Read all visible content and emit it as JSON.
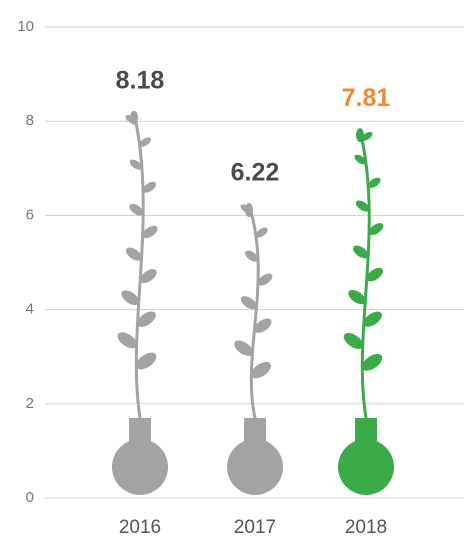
{
  "chart_data": {
    "type": "vine-bar",
    "categories": [
      "2016",
      "2017",
      "2018"
    ],
    "values": [
      8.18,
      6.22,
      7.81
    ],
    "colors": [
      "#a3a3a3",
      "#a3a3a3",
      "#3aab48"
    ],
    "value_label_colors": [
      "#4a4a4a",
      "#4a4a4a",
      "#f08a2e"
    ],
    "ylim": [
      0,
      10
    ],
    "yticks": [
      0,
      2,
      4,
      6,
      8,
      10
    ],
    "grid": true
  }
}
